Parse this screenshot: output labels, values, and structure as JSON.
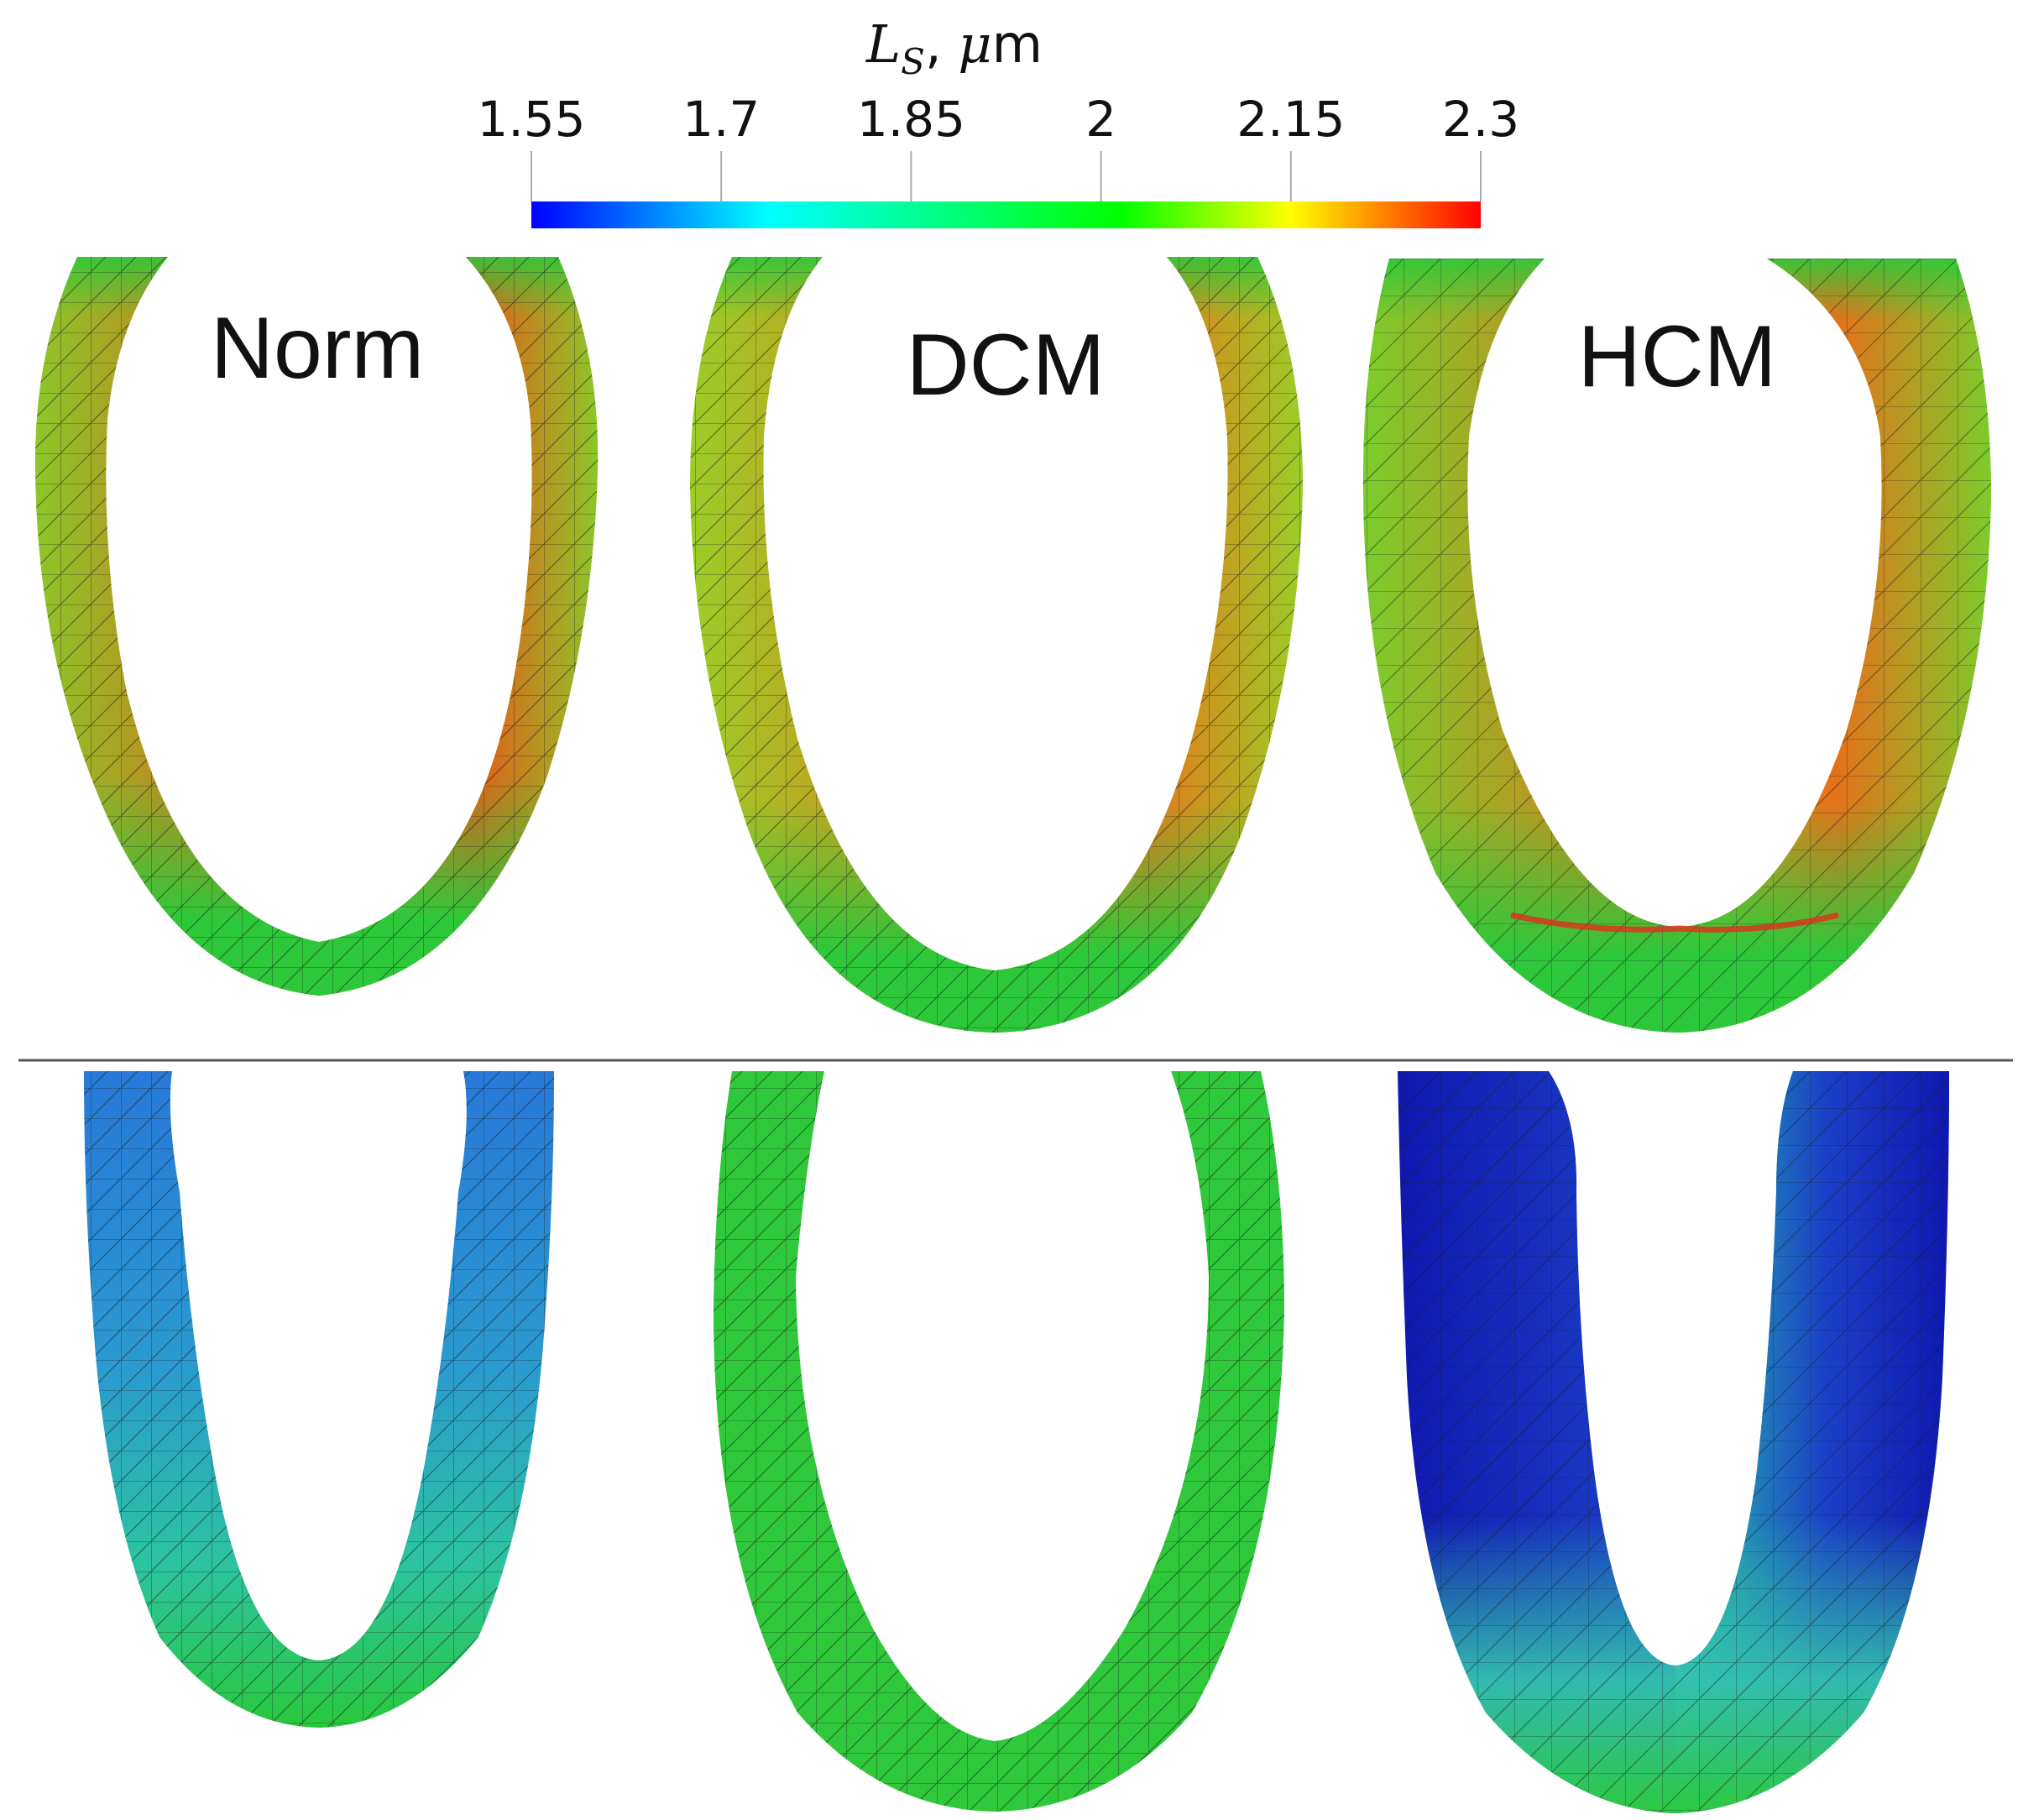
{
  "colorbar": {
    "title_symbol": "L",
    "title_subscript": "S",
    "title_sep": ", ",
    "title_mu": "μ",
    "title_unit": "m",
    "ticks": [
      "1.55",
      "1.7",
      "1.85",
      "2",
      "2.15",
      "2.3"
    ],
    "tick_values": [
      1.55,
      1.7,
      1.85,
      2.0,
      2.15,
      2.3
    ],
    "range": [
      1.55,
      2.3
    ],
    "colormap": [
      "#0000ff",
      "#00ffff",
      "#00ff00",
      "#ffff00",
      "#ff0000"
    ]
  },
  "panels": {
    "labels": [
      "Norm",
      "DCM",
      "HCM"
    ]
  },
  "colors": {
    "mesh_line": "#1a1a1a",
    "divider": "#555555"
  }
}
